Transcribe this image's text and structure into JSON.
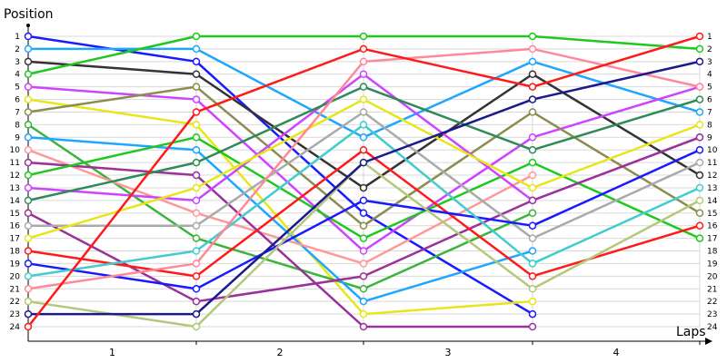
{
  "chart_data": {
    "type": "line",
    "title": "",
    "ylabel": "Position",
    "xlabel": "Laps",
    "x_categories": [
      "1",
      "2",
      "3",
      "4"
    ],
    "y_ticks": [
      "1",
      "2",
      "3",
      "4",
      "5",
      "6",
      "7",
      "8",
      "9",
      "10",
      "11",
      "12",
      "13",
      "14",
      "15",
      "16",
      "17",
      "18",
      "19",
      "20",
      "21",
      "22",
      "23",
      "24"
    ],
    "ylim": [
      1,
      24
    ],
    "y_inverted": true,
    "grid": true,
    "series": [
      {
        "color": "#1a1aff",
        "positions": [
          1,
          3,
          15,
          23
        ]
      },
      {
        "color": "#1fa6ff",
        "positions": [
          2,
          2,
          9,
          3,
          7
        ]
      },
      {
        "color": "#333333",
        "positions": [
          3,
          4,
          13,
          4,
          12
        ]
      },
      {
        "color": "#1ec81e",
        "positions": [
          4,
          1,
          1,
          1,
          2
        ]
      },
      {
        "color": "#cc44ff",
        "positions": [
          5,
          6,
          18,
          9,
          5
        ]
      },
      {
        "color": "#e6e61a",
        "positions": [
          6,
          8,
          23,
          22
        ]
      },
      {
        "color": "#8c8c50",
        "positions": [
          7,
          5,
          16,
          7,
          15
        ]
      },
      {
        "color": "#3cb43c",
        "positions": [
          8,
          17,
          21,
          15
        ]
      },
      {
        "color": "#1fa6ff",
        "positions": [
          9,
          10,
          22,
          18
        ]
      },
      {
        "color": "#ff9999",
        "positions": [
          10,
          15,
          19,
          12
        ]
      },
      {
        "color": "#993399",
        "positions": [
          11,
          12,
          24,
          24
        ]
      },
      {
        "color": "#1ec81e",
        "positions": [
          12,
          9,
          17,
          11,
          17
        ]
      },
      {
        "color": "#cc44ff",
        "positions": [
          13,
          14,
          4,
          14,
          9
        ]
      },
      {
        "color": "#2e8b57",
        "positions": [
          14,
          11,
          5,
          10,
          6
        ]
      },
      {
        "color": "#993399",
        "positions": [
          15,
          22,
          20,
          14,
          9
        ]
      },
      {
        "color": "#aaaaaa",
        "positions": [
          16,
          16,
          7,
          17,
          11
        ]
      },
      {
        "color": "#e6e61a",
        "positions": [
          17,
          13,
          6,
          13,
          8
        ]
      },
      {
        "color": "#ff1a1a",
        "positions": [
          18,
          20,
          10,
          20,
          16
        ]
      },
      {
        "color": "#1a1aff",
        "positions": [
          19,
          21,
          14,
          16,
          10
        ]
      },
      {
        "color": "#44cccc",
        "positions": [
          20,
          18,
          8,
          19,
          13
        ]
      },
      {
        "color": "#ff8899",
        "positions": [
          21,
          19,
          3,
          2,
          5
        ]
      },
      {
        "color": "#b4c87a",
        "positions": [
          22,
          24,
          11,
          21,
          14
        ]
      },
      {
        "color": "#1a1a8c",
        "positions": [
          23,
          23,
          11,
          6,
          3
        ]
      },
      {
        "color": "#ff1a1a",
        "positions": [
          24,
          7,
          2,
          5,
          1
        ]
      }
    ]
  }
}
